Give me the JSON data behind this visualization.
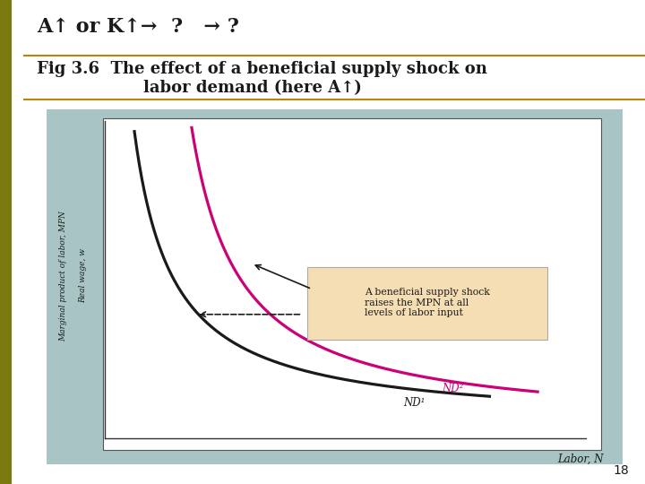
{
  "title_line1": "A↑ or K↑→  ?   → ?",
  "title_line2": "Fig 3.6  The effect of a beneficial supply shock on",
  "title_line3": "labor demand (here A↑)",
  "ylabel_top": "Marginal product of labor, MPN",
  "ylabel_bottom": "Real wage, w",
  "xlabel": "Labor, N",
  "nd1_label": "ND¹",
  "nd2_label": "ND²",
  "annotation_text": "A beneficial supply shock\nraises the MPN at all\nlevels of labor input",
  "curve1_color": "#1a1a1a",
  "curve2_color": "#cc0077",
  "bg_outer": "#ffffff",
  "bg_plot": "#a8c4c4",
  "bg_inner": "#ffffff",
  "annotation_box_color": "#f5deb3",
  "left_bar_color": "#7a7a10",
  "slide_number": "18",
  "title_color": "#1a1a1a",
  "sep_line_color": "#b8860b"
}
